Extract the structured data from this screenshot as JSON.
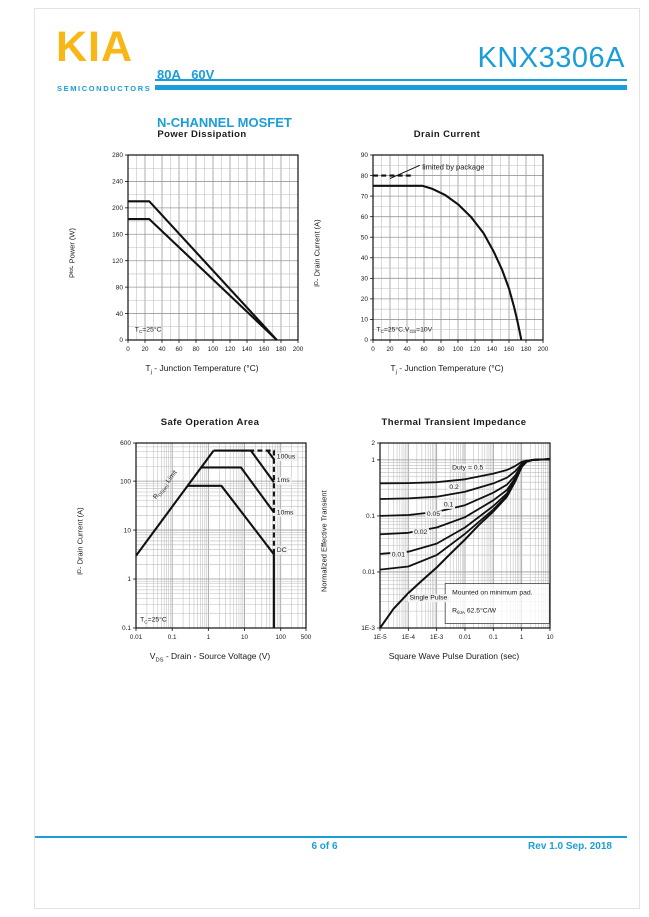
{
  "header": {
    "logo_text": "KIA",
    "logo_subtext": "SEMICONDUCTORS",
    "rating_line1": "80A   60V",
    "rating_line2": "N-CHANNEL MOSFET",
    "part_number": "KNX3306A",
    "accent_color": "#1B9DD9",
    "logo_color": "#F7B716"
  },
  "footer": {
    "page_indicator": "6 of 6",
    "revision": "Rev 1.0 Sep. 2018"
  },
  "chart_data": [
    {
      "name": "power-dissipation",
      "type": "line",
      "title": "Power Dissipation",
      "xlabel": [
        {
          "t": "T"
        },
        {
          "t": "j",
          "sub": true
        },
        {
          "t": " - Junction Temperature (°C)"
        }
      ],
      "ylabel": [
        {
          "t": "P"
        },
        {
          "t": "tot",
          "sub": true
        },
        {
          "t": " - Power (W)"
        }
      ],
      "xaxis": {
        "scale": "linear",
        "min": 0,
        "max": 200,
        "tick": 20,
        "minor": 10
      },
      "yaxis": {
        "scale": "linear",
        "min": 0,
        "max": 280,
        "tick": 40,
        "minor": 20
      },
      "series": [
        {
          "name": "power-upper",
          "points": [
            [
              0,
              210
            ],
            [
              25,
              210
            ],
            [
              175,
              0
            ]
          ]
        },
        {
          "name": "power-lower",
          "points": [
            [
              0,
              183
            ],
            [
              25,
              183
            ],
            [
              175,
              0
            ]
          ]
        }
      ],
      "annotations": [
        {
          "segs": [
            {
              "t": "T"
            },
            {
              "t": "C",
              "sub": true
            },
            {
              "t": "=25°C"
            }
          ],
          "x": 8,
          "y": 13
        }
      ]
    },
    {
      "name": "drain-current",
      "type": "line",
      "title": "Drain Current",
      "xlabel": [
        {
          "t": "T"
        },
        {
          "t": "j",
          "sub": true
        },
        {
          "t": " - Junction Temperature (°C)"
        }
      ],
      "ylabel": [
        {
          "t": "I"
        },
        {
          "t": "D",
          "sub": true
        },
        {
          "t": " - Drain Current (A)"
        }
      ],
      "xaxis": {
        "scale": "linear",
        "min": 0,
        "max": 200,
        "tick": 20,
        "minor": 10
      },
      "yaxis": {
        "scale": "linear",
        "min": 0,
        "max": 90,
        "tick": 10,
        "minor": 5
      },
      "series": [
        {
          "name": "package-limit",
          "dash": true,
          "points": [
            [
              0,
              80
            ],
            [
              45,
              80
            ]
          ]
        },
        {
          "name": "leader-line",
          "width": 1,
          "points": [
            [
              20,
              78.5
            ],
            [
              55,
              85
            ]
          ]
        },
        {
          "name": "drain-current-vs-tj",
          "points": [
            [
              0,
              75
            ],
            [
              58,
              75
            ],
            [
              70,
              73.5
            ],
            [
              85,
              70.5
            ],
            [
              100,
              66
            ],
            [
              115,
              60
            ],
            [
              130,
              52
            ],
            [
              142,
              43
            ],
            [
              152,
              34
            ],
            [
              160,
              25
            ],
            [
              166,
              16
            ],
            [
              170,
              9
            ],
            [
              173,
              3
            ],
            [
              174.5,
              0
            ]
          ]
        }
      ],
      "annotations": [
        {
          "segs": [
            {
              "t": "limited by package"
            }
          ],
          "x": 58,
          "y": 83,
          "size": 7.5
        },
        {
          "segs": [
            {
              "t": "T"
            },
            {
              "t": "C",
              "sub": true
            },
            {
              "t": "=25°C,V"
            },
            {
              "t": "GS",
              "sub": true
            },
            {
              "t": "=10V"
            }
          ],
          "x": 4,
          "y": 4.2
        }
      ]
    },
    {
      "name": "safe-operation-area",
      "type": "line",
      "title": "Safe Operation Area",
      "xlabel": [
        {
          "t": "V"
        },
        {
          "t": "DS",
          "sub": true
        },
        {
          "t": " - Drain - Source Voltage (V)"
        }
      ],
      "ylabel": [
        {
          "t": "I"
        },
        {
          "t": "D",
          "sub": true
        },
        {
          "t": " - Drain Current (A)"
        }
      ],
      "xaxis": {
        "scale": "log",
        "min": 0.01,
        "max": 500,
        "ticks": [
          0.01,
          0.1,
          1,
          10,
          100,
          500
        ],
        "tick_labels": [
          "0.01",
          "0.1",
          "1",
          "10",
          "100",
          "500"
        ]
      },
      "yaxis": {
        "scale": "log",
        "min": 0.1,
        "max": 600,
        "ticks": [
          0.1,
          1,
          10,
          100,
          600
        ],
        "tick_labels": [
          "0.1",
          "1",
          "10",
          "100",
          "600"
        ]
      },
      "series": [
        {
          "name": "rdson-limit",
          "points": [
            [
              0.01,
              3
            ],
            [
              1.4,
              420
            ]
          ]
        },
        {
          "name": "pulse-100us",
          "dash": true,
          "points": [
            [
              8,
              420
            ],
            [
              65,
              420
            ],
            [
              65,
              3.2
            ]
          ]
        },
        {
          "name": "pulse-100us-power",
          "points": [
            [
              43,
              420
            ],
            [
              65,
              280
            ]
          ]
        },
        {
          "name": "pulse-1ms",
          "points": [
            [
              1.4,
              420
            ],
            [
              15,
              420
            ],
            [
              65,
              95
            ]
          ]
        },
        {
          "name": "pulse-10ms",
          "points": [
            [
              0.63,
              190
            ],
            [
              8,
              190
            ],
            [
              65,
              23
            ]
          ]
        },
        {
          "name": "dc",
          "points": [
            [
              0.267,
              80
            ],
            [
              2.3,
              80
            ],
            [
              65,
              3.2
            ],
            [
              65,
              0.1
            ]
          ]
        }
      ],
      "annotations": [
        {
          "segs": [
            {
              "t": "R"
            },
            {
              "t": "DS(on)",
              "sub": true
            },
            {
              "t": " Limit"
            }
          ],
          "x": 0.07,
          "y": 80,
          "rotate": -52,
          "anchor": "middle",
          "size": 6.5
        },
        {
          "segs": [
            {
              "t": "100us"
            }
          ],
          "x": 78,
          "y": 290,
          "bg": true
        },
        {
          "segs": [
            {
              "t": "1ms"
            }
          ],
          "x": 78,
          "y": 95,
          "bg": true
        },
        {
          "segs": [
            {
              "t": "10ms"
            }
          ],
          "x": 78,
          "y": 21,
          "bg": true
        },
        {
          "segs": [
            {
              "t": "DC"
            }
          ],
          "x": 78,
          "y": 3.6,
          "bg": true
        },
        {
          "segs": [
            {
              "t": "T"
            },
            {
              "t": "C",
              "sub": true
            },
            {
              "t": "=25°C"
            }
          ],
          "x": 0.013,
          "y": 0.135
        }
      ]
    },
    {
      "name": "thermal-transient-impedance",
      "type": "line",
      "title": "Thermal Transient Impedance",
      "xlabel": [
        {
          "t": "Square Wave Pulse Duration (sec)"
        }
      ],
      "ylabel": [
        {
          "t": "Normalized Effective Transient"
        }
      ],
      "xaxis": {
        "scale": "log",
        "min": 1e-05,
        "max": 10,
        "ticks": [
          1e-05,
          0.0001,
          0.001,
          0.01,
          0.1,
          1,
          10
        ],
        "tick_labels": [
          "1E-5",
          "1E-4",
          "1E-3",
          "0.01",
          "0.1",
          "1",
          "10"
        ]
      },
      "yaxis": {
        "scale": "log",
        "min": 0.001,
        "max": 2,
        "ticks": [
          0.001,
          0.01,
          0.1,
          1,
          2
        ],
        "tick_labels": [
          "1E-3",
          "0.01",
          "0.1",
          "1",
          "2"
        ]
      },
      "series": [
        {
          "name": "duty-0.5",
          "width": 1.8,
          "points": [
            [
              1e-05,
              0.38
            ],
            [
              0.0001,
              0.385
            ],
            [
              0.001,
              0.4
            ],
            [
              0.01,
              0.45
            ],
            [
              0.1,
              0.57
            ],
            [
              0.3,
              0.66
            ],
            [
              0.6,
              0.78
            ],
            [
              1,
              0.92
            ],
            [
              1.5,
              0.97
            ],
            [
              2.5,
              1.0
            ],
            [
              10,
              1.03
            ]
          ]
        },
        {
          "name": "duty-0.2",
          "width": 1.8,
          "points": [
            [
              1e-05,
              0.2
            ],
            [
              0.0001,
              0.205
            ],
            [
              0.001,
              0.22
            ],
            [
              0.01,
              0.27
            ],
            [
              0.1,
              0.38
            ],
            [
              0.3,
              0.48
            ],
            [
              0.6,
              0.63
            ],
            [
              1,
              0.85
            ],
            [
              1.5,
              0.95
            ],
            [
              2.5,
              1.0
            ],
            [
              10,
              1.03
            ]
          ]
        },
        {
          "name": "duty-0.1",
          "width": 1.8,
          "points": [
            [
              1e-05,
              0.1
            ],
            [
              0.0001,
              0.104
            ],
            [
              0.001,
              0.118
            ],
            [
              0.01,
              0.155
            ],
            [
              0.1,
              0.26
            ],
            [
              0.3,
              0.36
            ],
            [
              0.6,
              0.53
            ],
            [
              1,
              0.8
            ],
            [
              1.5,
              0.94
            ],
            [
              2.5,
              1.0
            ],
            [
              10,
              1.03
            ]
          ]
        },
        {
          "name": "duty-0.05",
          "width": 1.8,
          "points": [
            [
              1e-05,
              0.047
            ],
            [
              0.0001,
              0.05
            ],
            [
              0.001,
              0.062
            ],
            [
              0.01,
              0.095
            ],
            [
              0.1,
              0.19
            ],
            [
              0.3,
              0.29
            ],
            [
              0.6,
              0.48
            ],
            [
              1,
              0.78
            ],
            [
              1.5,
              0.94
            ],
            [
              2.5,
              1.0
            ],
            [
              10,
              1.03
            ]
          ]
        },
        {
          "name": "duty-0.02",
          "width": 1.8,
          "points": [
            [
              1e-05,
              0.021
            ],
            [
              0.0001,
              0.023
            ],
            [
              0.001,
              0.032
            ],
            [
              0.01,
              0.062
            ],
            [
              0.1,
              0.15
            ],
            [
              0.3,
              0.25
            ],
            [
              0.6,
              0.45
            ],
            [
              1,
              0.77
            ],
            [
              1.5,
              0.93
            ],
            [
              2.5,
              1.0
            ],
            [
              10,
              1.03
            ]
          ]
        },
        {
          "name": "duty-0.01",
          "width": 1.8,
          "points": [
            [
              1e-05,
              0.011
            ],
            [
              0.0001,
              0.0125
            ],
            [
              0.001,
              0.02
            ],
            [
              0.01,
              0.048
            ],
            [
              0.1,
              0.13
            ],
            [
              0.3,
              0.23
            ],
            [
              0.6,
              0.43
            ],
            [
              1,
              0.76
            ],
            [
              1.5,
              0.93
            ],
            [
              2.5,
              1.0
            ],
            [
              10,
              1.03
            ]
          ]
        },
        {
          "name": "single-pulse",
          "width": 2,
          "points": [
            [
              1e-05,
              0.001
            ],
            [
              3e-05,
              0.0022
            ],
            [
              0.0001,
              0.0042
            ],
            [
              0.0003,
              0.007
            ],
            [
              0.001,
              0.012
            ],
            [
              0.003,
              0.021
            ],
            [
              0.01,
              0.038
            ],
            [
              0.03,
              0.068
            ],
            [
              0.1,
              0.12
            ],
            [
              0.3,
              0.22
            ],
            [
              0.6,
              0.42
            ],
            [
              1,
              0.75
            ],
            [
              1.5,
              0.93
            ],
            [
              2.5,
              1.0
            ],
            [
              10,
              1.03
            ]
          ]
        }
      ],
      "boxes": [
        {
          "x1": 0.002,
          "y1": 0.0012,
          "x2": 9.5,
          "y2": 0.0062
        }
      ],
      "annotations": [
        {
          "segs": [
            {
              "t": "Duty =  0.5"
            }
          ],
          "x": 0.0035,
          "y": 0.68,
          "bg": true
        },
        {
          "segs": [
            {
              "t": "0.2"
            }
          ],
          "x": 0.0028,
          "y": 0.3,
          "bg": true
        },
        {
          "segs": [
            {
              "t": "0.1"
            }
          ],
          "x": 0.0018,
          "y": 0.148,
          "bg": true
        },
        {
          "segs": [
            {
              "t": "0.05"
            }
          ],
          "x": 0.00045,
          "y": 0.1,
          "bg": true
        },
        {
          "segs": [
            {
              "t": "0.02"
            }
          ],
          "x": 0.00016,
          "y": 0.048,
          "bg": true
        },
        {
          "segs": [
            {
              "t": "0.01"
            }
          ],
          "x": 2.6e-05,
          "y": 0.019,
          "bg": true
        },
        {
          "segs": [
            {
              "t": "Single Pulse"
            }
          ],
          "x": 0.00011,
          "y": 0.0032,
          "bg": true
        },
        {
          "segs": [
            {
              "t": "Mounted on minimum pad."
            }
          ],
          "x": 0.0035,
          "y": 0.004
        },
        {
          "segs": [
            {
              "t": "R"
            },
            {
              "t": "θJA",
              "sub": true
            },
            {
              "t": " 62.5°C/W"
            }
          ],
          "x": 0.0035,
          "y": 0.0019
        }
      ]
    }
  ]
}
